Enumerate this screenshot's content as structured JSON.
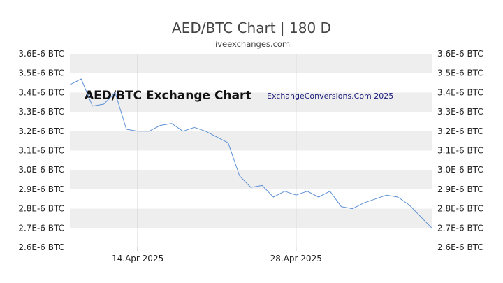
{
  "header": {
    "title": "AED/BTC Chart | 180 D",
    "subtitle": "liveexchanges.com"
  },
  "watermarks": {
    "chart_label": "AED/BTC Exchange Chart",
    "credit": "ExchangeConversions.Com 2025"
  },
  "colors": {
    "line": "#5b8fd6",
    "band": "#eeeeee",
    "vline": "#c8c8c8",
    "text": "#222222"
  },
  "chart_data": {
    "type": "line",
    "title": "AED/BTC Chart | 180 D",
    "xlabel": "",
    "ylabel": "",
    "ylim": [
      2.6e-06,
      3.6e-06
    ],
    "y_ticks": [
      "3.6E-6 BTC",
      "3.5E-6 BTC",
      "3.4E-6 BTC",
      "3.3E-6 BTC",
      "3.2E-6 BTC",
      "3.1E-6 BTC",
      "3.0E-6 BTC",
      "2.9E-6 BTC",
      "2.8E-6 BTC",
      "2.7E-6 BTC",
      "2.6E-6 BTC"
    ],
    "y_tick_values": [
      3.6e-06,
      3.5e-06,
      3.4e-06,
      3.3e-06,
      3.2e-06,
      3.1e-06,
      3e-06,
      2.9e-06,
      2.8e-06,
      2.7e-06,
      2.6e-06
    ],
    "x_ticks": [
      "14.Apr 2025",
      "28.Apr 2025"
    ],
    "x_tick_values": [
      "2025-04-14",
      "2025-04-28"
    ],
    "xlim": [
      "2025-04-08",
      "2025-05-10"
    ],
    "grid": "alternating horizontal bands",
    "series": [
      {
        "x": [
          "2025-04-08",
          "2025-04-09",
          "2025-04-10",
          "2025-04-11",
          "2025-04-12",
          "2025-04-13",
          "2025-04-14",
          "2025-04-15",
          "2025-04-16",
          "2025-04-17",
          "2025-04-18",
          "2025-04-19",
          "2025-04-20",
          "2025-04-21",
          "2025-04-22",
          "2025-04-23",
          "2025-04-24",
          "2025-04-25",
          "2025-04-26",
          "2025-04-27",
          "2025-04-28",
          "2025-04-29",
          "2025-04-30",
          "2025-05-01",
          "2025-05-02",
          "2025-05-03",
          "2025-05-04",
          "2025-05-05",
          "2025-05-06",
          "2025-05-07",
          "2025-05-08",
          "2025-05-09",
          "2025-05-10"
        ],
        "values": [
          3.44e-06,
          3.47e-06,
          3.33e-06,
          3.34e-06,
          3.4e-06,
          3.21e-06,
          3.2e-06,
          3.2e-06,
          3.23e-06,
          3.24e-06,
          3.2e-06,
          3.22e-06,
          3.2e-06,
          3.17e-06,
          3.14e-06,
          2.97e-06,
          2.91e-06,
          2.92e-06,
          2.86e-06,
          2.89e-06,
          2.87e-06,
          2.89e-06,
          2.86e-06,
          2.89e-06,
          2.81e-06,
          2.8e-06,
          2.83e-06,
          2.85e-06,
          2.87e-06,
          2.86e-06,
          2.82e-06,
          2.76e-06,
          2.7e-06
        ]
      }
    ]
  }
}
